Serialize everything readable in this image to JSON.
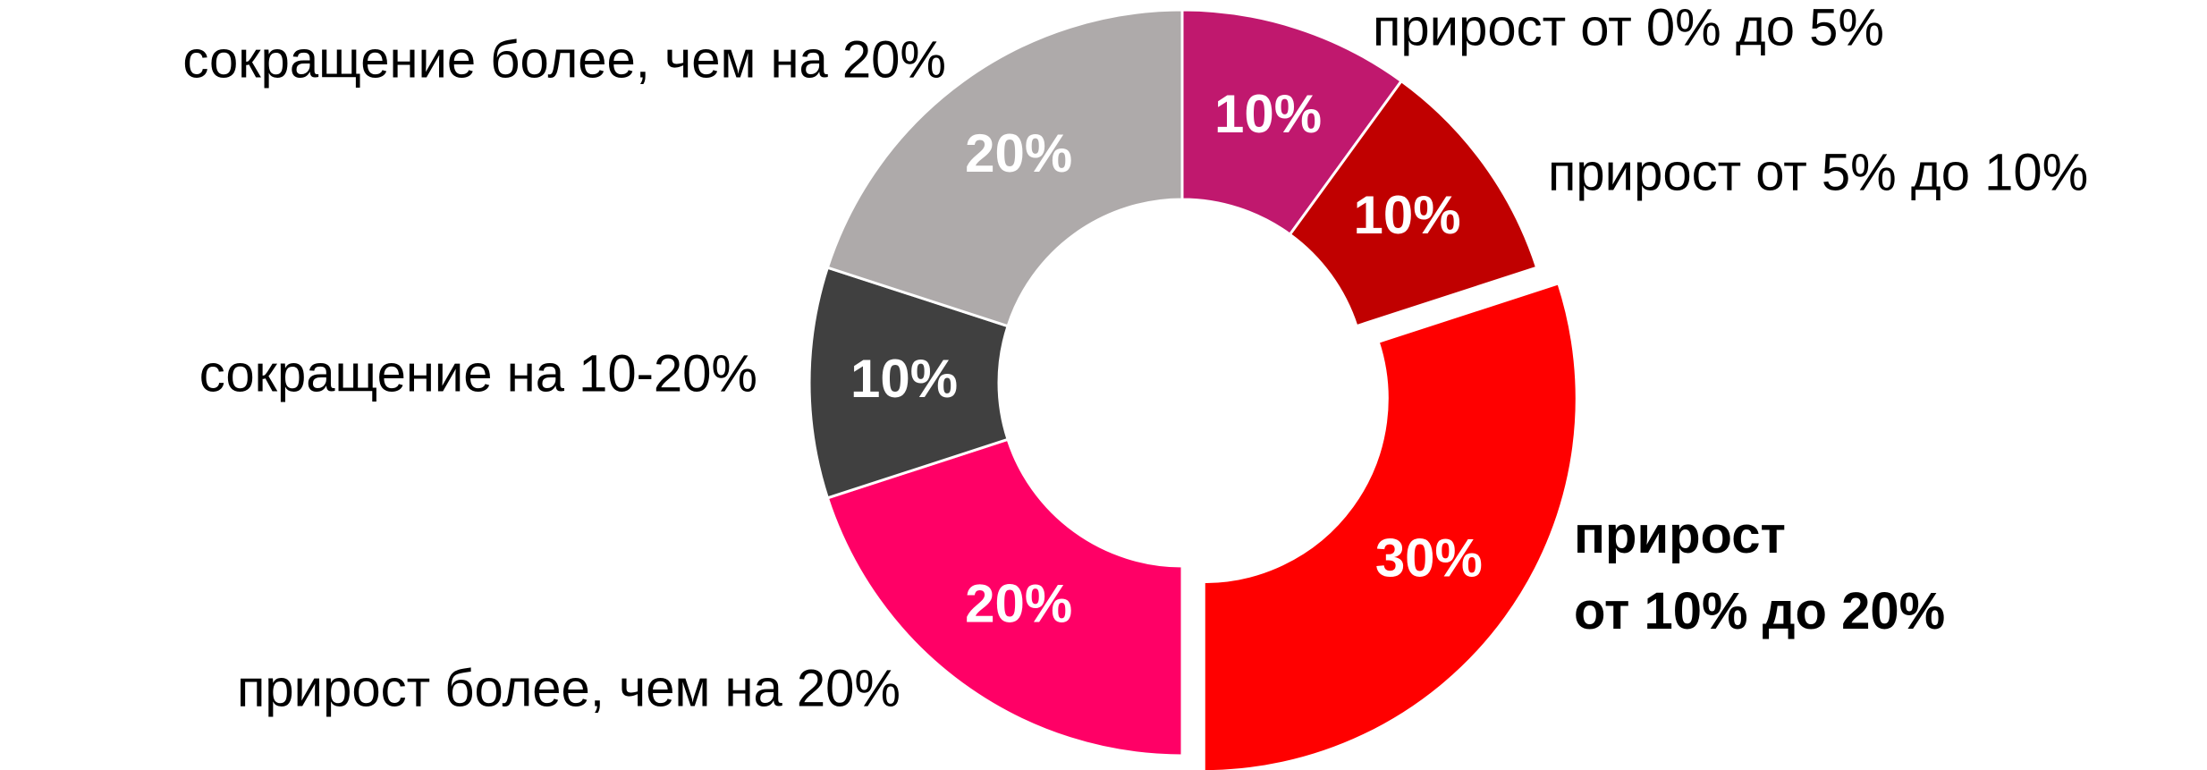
{
  "chart_data": {
    "type": "donut",
    "categories": [
      "прирост от 0% до 5%",
      "прирост от 5% до 10%",
      "прирост от 10% до 20%",
      "прирост более, чем на 20%",
      "сокращение на 10-20%",
      "сокращение более, чем на 20%"
    ],
    "values": [
      10,
      10,
      30,
      20,
      10,
      20
    ],
    "value_labels": [
      "10%",
      "10%",
      "30%",
      "20%",
      "10%",
      "20%"
    ],
    "colors": [
      "#c0186e",
      "#c00000",
      "#ff0000",
      "#ff0066",
      "#404040",
      "#aeaaaa"
    ],
    "exploded": "прирост от 10% до 20%"
  }
}
